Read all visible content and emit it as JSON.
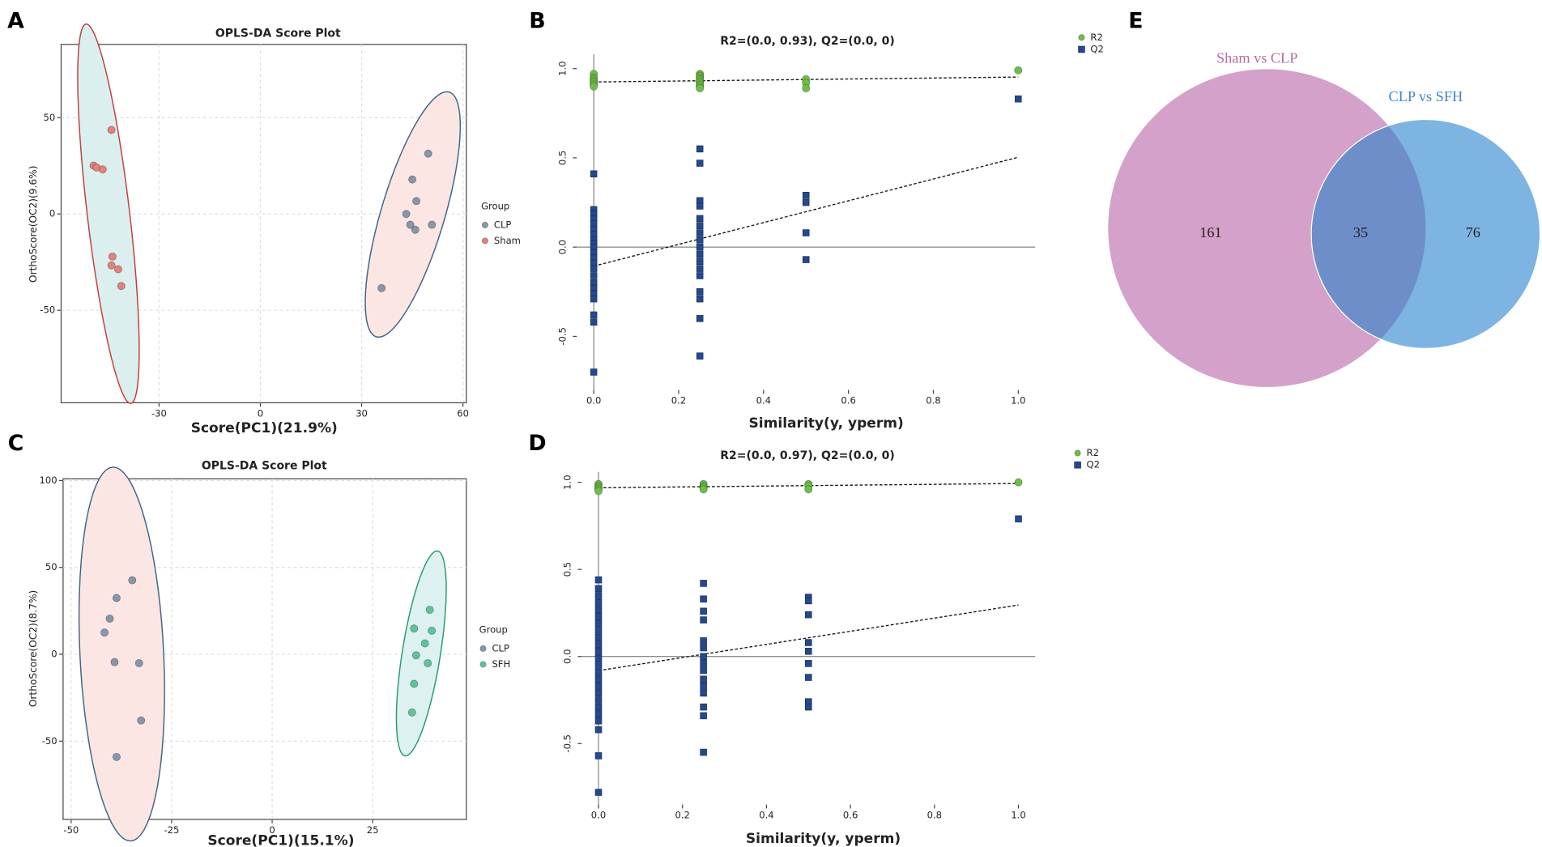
{
  "chart_data": [
    {
      "type": "scatter",
      "panel": "A",
      "title": "OPLS-DA Score Plot",
      "x_label": "Score(PC1)(21.9%)",
      "y_label": "OrthoScore(OC2)(9.6%)",
      "xlim": [
        -59,
        61
      ],
      "ylim": [
        -98,
        88
      ],
      "xticks": [
        -30,
        0,
        30,
        60
      ],
      "yticks": [
        -50,
        0,
        50
      ],
      "grid": true,
      "frame": true,
      "ellipses": true,
      "legend": "right",
      "legend_title": "Group",
      "series": [
        {
          "name": "CLP",
          "color": "#8796aa",
          "ellipse_stroke": "#3d6584",
          "ellipse_fill": "#fbe6e4",
          "marker": "circle",
          "x": [
            49.7,
            45.0,
            46.2,
            43.2,
            44.4,
            45.9,
            50.8,
            35.9
          ],
          "values": [
            31.3,
            17.9,
            6.7,
            0,
            -5.6,
            -8.2,
            -5.6,
            -38.5
          ]
        },
        {
          "name": "Sham",
          "color": "#e3817d",
          "ellipse_stroke": "#c43c3c",
          "ellipse_fill": "#dcefef",
          "marker": "circle",
          "x": [
            -44.1,
            -49.4,
            -48.5,
            -46.7,
            -43.8,
            -44.1,
            -42.1,
            -41.2
          ],
          "values": [
            43.6,
            25.1,
            24.1,
            23.1,
            -22.1,
            -26.7,
            -28.7,
            -37.4
          ]
        }
      ]
    },
    {
      "type": "scatter",
      "panel": "B",
      "title": "R2=(0.0, 0.93), Q2=(0.0, 0)",
      "x_label": "Similarity(y, yperm)",
      "xlim": [
        -0.04,
        1.04
      ],
      "ylim": [
        -0.8,
        1.08
      ],
      "xticks": [
        {
          "value": 0,
          "label": "0.0"
        },
        0.2,
        0.4,
        0.6,
        0.8,
        {
          "value": 1,
          "label": "1.0"
        }
      ],
      "yticks": [
        -0.5,
        {
          "value": 0,
          "label": "0.0"
        },
        0.5,
        {
          "value": 1,
          "label": "1.0"
        }
      ],
      "grid": false,
      "frame": false,
      "zero_lines": true,
      "fit_lines": true,
      "ytick_labels_rotated": true,
      "legend": "top-right",
      "series": [
        {
          "name": "R2",
          "color": "#6dbf45",
          "marker": "circle",
          "x": [
            0,
            0,
            0,
            0,
            0,
            0,
            0,
            0.25,
            0.25,
            0.25,
            0.25,
            0.25,
            0.25,
            0.25,
            0.25,
            0.25,
            0.5,
            0.5,
            0.5,
            1
          ],
          "values": [
            0.97,
            0.95,
            0.94,
            0.93,
            0.92,
            0.91,
            0.9,
            0.97,
            0.96,
            0.95,
            0.94,
            0.93,
            0.92,
            0.91,
            0.9,
            0.89,
            0.94,
            0.92,
            0.89,
            0.99
          ]
        },
        {
          "name": "Q2",
          "color": "#24498f",
          "marker": "square",
          "x": [
            0,
            0,
            0,
            0,
            0,
            0,
            0,
            0,
            0,
            0,
            0,
            0,
            0,
            0,
            0,
            0,
            0,
            0,
            0,
            0,
            0,
            0,
            0.25,
            0.25,
            0.25,
            0.25,
            0.25,
            0.25,
            0.25,
            0.25,
            0.25,
            0.25,
            0.25,
            0.25,
            0.25,
            0.25,
            0.25,
            0.25,
            0.25,
            0.5,
            0.5,
            0.5,
            0.5,
            1
          ],
          "values": [
            0.41,
            0.21,
            0.19,
            0.16,
            0.13,
            0.1,
            0.07,
            0.04,
            0.02,
            0,
            -0.03,
            -0.06,
            -0.09,
            -0.12,
            -0.16,
            -0.2,
            -0.23,
            -0.26,
            -0.29,
            -0.38,
            -0.42,
            -0.7,
            0.55,
            0.47,
            0.26,
            0.23,
            0.16,
            0.12,
            0.08,
            0.04,
            0,
            -0.04,
            -0.08,
            -0.12,
            -0.16,
            -0.25,
            -0.29,
            -0.4,
            -0.61,
            0.29,
            0.25,
            0.08,
            -0.07,
            0.83
          ]
        }
      ]
    },
    {
      "type": "scatter",
      "panel": "C",
      "title": "OPLS-DA Score Plot",
      "x_label": "Score(PC1)(15.1%)",
      "y_label": "OrthoScore(OC2)(8.7%)",
      "xlim": [
        -52,
        48.3
      ],
      "ylim": [
        -95,
        101
      ],
      "xticks": [
        -50,
        -25,
        0,
        25
      ],
      "yticks": [
        -50,
        0,
        50,
        100
      ],
      "grid": true,
      "frame": true,
      "ellipses": true,
      "legend": "right",
      "legend_title": "Group",
      "series": [
        {
          "name": "CLP",
          "color": "#8796aa",
          "ellipse_stroke": "#3d6584",
          "ellipse_fill": "#fbe6e4",
          "marker": "circle",
          "x": [
            -34.8,
            -38.7,
            -40.4,
            -41.7,
            -39.2,
            -33.1,
            -32.6,
            -38.7
          ],
          "values": [
            42.6,
            32.4,
            20.5,
            12.5,
            -4.5,
            -5.1,
            -38.1,
            -59.1
          ]
        },
        {
          "name": "SFH",
          "color": "#5fc29a",
          "ellipse_stroke": "#2a9a6a",
          "ellipse_fill": "#ddf1f1",
          "marker": "circle",
          "x": [
            39.2,
            35.3,
            39.7,
            38.0,
            35.8,
            38.7,
            35.3,
            34.8
          ],
          "values": [
            25.6,
            14.8,
            13.6,
            6.3,
            -0.6,
            -5.1,
            -17.0,
            -33.5
          ]
        }
      ]
    },
    {
      "type": "scatter",
      "panel": "D",
      "title": "R2=(0.0, 0.97), Q2=(0.0, 0)",
      "x_label": "Similarity(y, yperm)",
      "xlim": [
        -0.04,
        1.04
      ],
      "ylim": [
        -0.85,
        1.06
      ],
      "xticks": [
        {
          "value": 0,
          "label": "0.0"
        },
        0.2,
        0.4,
        0.6,
        0.8,
        {
          "value": 1,
          "label": "1.0"
        }
      ],
      "yticks": [
        -0.5,
        {
          "value": 0,
          "label": "0.0"
        },
        0.5,
        {
          "value": 1,
          "label": "1.0"
        }
      ],
      "grid": false,
      "frame": false,
      "zero_lines": true,
      "fit_lines": true,
      "ytick_labels_rotated": true,
      "legend": "top-right",
      "series": [
        {
          "name": "R2",
          "color": "#6dbf45",
          "marker": "circle",
          "x": [
            0,
            0,
            0,
            0,
            0,
            0.25,
            0.25,
            0.25,
            0.25,
            0.5,
            0.5,
            0.5,
            1
          ],
          "values": [
            0.99,
            0.98,
            0.97,
            0.96,
            0.95,
            0.99,
            0.98,
            0.97,
            0.96,
            0.99,
            0.98,
            0.96,
            1.0
          ]
        },
        {
          "name": "Q2",
          "color": "#24498f",
          "marker": "square",
          "x": [
            0,
            0,
            0,
            0,
            0,
            0,
            0,
            0,
            0,
            0,
            0,
            0,
            0,
            0,
            0,
            0,
            0,
            0,
            0,
            0,
            0,
            0,
            0,
            0,
            0.25,
            0.25,
            0.25,
            0.25,
            0.25,
            0.25,
            0.25,
            0.25,
            0.25,
            0.25,
            0.25,
            0.25,
            0.25,
            0.25,
            0.25,
            0.5,
            0.5,
            0.5,
            0.5,
            0.5,
            0.5,
            0.5,
            0.5,
            0.5,
            1
          ],
          "values": [
            0.44,
            0.39,
            0.35,
            0.31,
            0.27,
            0.23,
            0.19,
            0.15,
            0.11,
            0.07,
            0.03,
            -0.01,
            -0.05,
            -0.09,
            -0.13,
            -0.17,
            -0.21,
            -0.25,
            -0.29,
            -0.33,
            -0.37,
            -0.42,
            -0.57,
            -0.78,
            0.42,
            0.33,
            0.26,
            0.21,
            0.09,
            0.05,
            0,
            -0.04,
            -0.08,
            -0.13,
            -0.17,
            -0.21,
            -0.29,
            -0.34,
            -0.55,
            0.34,
            0.32,
            0.24,
            0.08,
            0.03,
            -0.04,
            -0.12,
            -0.26,
            -0.29,
            0.79
          ]
        }
      ]
    },
    {
      "type": "venn",
      "panel": "E",
      "sets": [
        {
          "name": "Sham vs CLP",
          "color": "#d3a1c9",
          "label_color": "#b8699f",
          "value": 161
        },
        {
          "name": "CLP vs SFH",
          "color": "#7db4e2",
          "label_color": "#3f86c8",
          "value": 76
        }
      ],
      "overlap": 35,
      "overlap_color": "#6d8ec9"
    }
  ]
}
